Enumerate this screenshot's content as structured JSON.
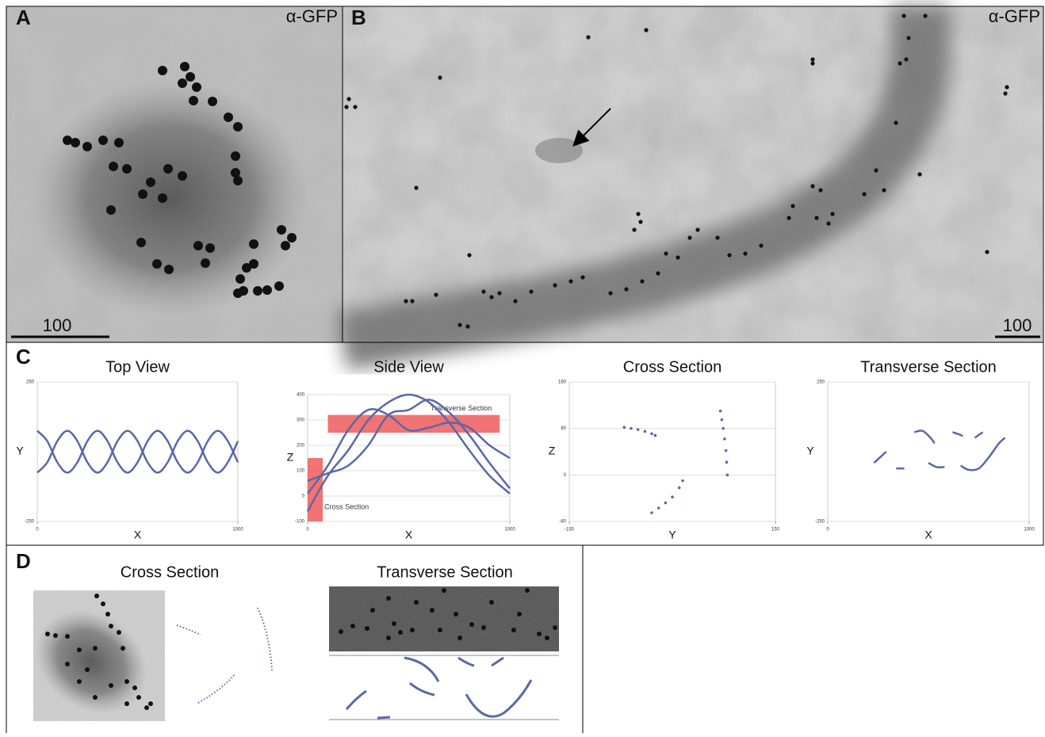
{
  "figure": {
    "panel_a": {
      "label": "A",
      "stain": "α-GFP",
      "scale_bar": "100"
    },
    "panel_b": {
      "label": "B",
      "stain": "α-GFP",
      "scale_bar": "100"
    },
    "panel_c": {
      "label": "C"
    },
    "panel_d": {
      "label": "D",
      "titles": [
        "Cross Section",
        "Transverse Section"
      ]
    }
  },
  "chart_data": [
    {
      "type": "line",
      "title": "Top View",
      "x_label": "X",
      "y_label": "Y",
      "xlim": [
        0,
        1000
      ],
      "ylim": [
        -250,
        250
      ],
      "xticks": [
        0,
        1000
      ],
      "yticks": [
        -250,
        250
      ],
      "series": [
        {
          "color": "#5a68a6",
          "x": [
            0,
            50,
            100,
            150,
            200,
            250,
            300,
            350,
            400,
            450,
            500,
            550,
            600,
            650,
            700,
            750,
            800,
            850,
            900,
            950,
            1000
          ],
          "values": [
            75,
            38,
            -38,
            -75,
            -38,
            38,
            75,
            38,
            -38,
            -75,
            -38,
            38,
            75,
            38,
            -38,
            -75,
            -38,
            38,
            75,
            38,
            -38
          ]
        },
        {
          "color": "#5a68a6",
          "x": [
            0,
            50,
            100,
            150,
            200,
            250,
            300,
            350,
            400,
            450,
            500,
            550,
            600,
            650,
            700,
            750,
            800,
            850,
            900,
            950,
            1000
          ],
          "values": [
            -75,
            -38,
            38,
            75,
            38,
            -38,
            -75,
            -38,
            38,
            75,
            38,
            -38,
            -75,
            -38,
            38,
            75,
            38,
            -38,
            -75,
            -38,
            38
          ]
        }
      ]
    },
    {
      "type": "line",
      "title": "Side View",
      "x_label": "X",
      "y_label": "Z",
      "xlim": [
        0,
        1000
      ],
      "ylim": [
        -100,
        400
      ],
      "xticks": [
        0,
        1000
      ],
      "yticks": [
        -100,
        0,
        100,
        200,
        300,
        400
      ],
      "regions": [
        {
          "label": "Transverse Section",
          "color": "#f05a5a",
          "x": [
            100,
            950
          ],
          "y": [
            250,
            320
          ]
        },
        {
          "label": "Cross Section",
          "color": "#f05a5a",
          "x": [
            0,
            75
          ],
          "y": [
            -100,
            150
          ]
        }
      ],
      "series": [
        {
          "color": "#5a68a6",
          "x": [
            0,
            100,
            200,
            300,
            400,
            500,
            600,
            700,
            800,
            900,
            1000
          ],
          "values": [
            -60,
            80,
            180,
            300,
            370,
            400,
            370,
            290,
            180,
            80,
            10
          ]
        },
        {
          "color": "#5a68a6",
          "x": [
            0,
            100,
            200,
            300,
            400,
            500,
            600,
            700,
            800,
            900,
            1000
          ],
          "values": [
            60,
            90,
            120,
            200,
            320,
            340,
            380,
            330,
            240,
            130,
            30
          ]
        },
        {
          "color": "#5a68a6",
          "x": [
            0,
            100,
            200,
            300,
            400,
            500,
            600,
            700,
            800,
            900,
            1000
          ],
          "values": [
            10,
            120,
            260,
            340,
            320,
            260,
            270,
            290,
            270,
            200,
            150
          ]
        }
      ]
    },
    {
      "type": "scatter",
      "title": "Cross Section",
      "x_label": "Y",
      "y_label": "Z",
      "xlim": [
        -150,
        150
      ],
      "ylim": [
        -80,
        160
      ],
      "xticks": [
        -150,
        150
      ],
      "yticks": [
        -80,
        0,
        80,
        160
      ],
      "series": [
        {
          "color": "#5a68a6",
          "x": [
            -70,
            -60,
            -50,
            -40,
            -30,
            -25
          ],
          "values": [
            82,
            80,
            78,
            75,
            71,
            68
          ]
        },
        {
          "color": "#5a68a6",
          "x": [
            70,
            72,
            74,
            76,
            78,
            79,
            80
          ],
          "values": [
            110,
            95,
            80,
            62,
            42,
            22,
            0
          ]
        },
        {
          "color": "#5a68a6",
          "x": [
            -30,
            -20,
            -10,
            0,
            10,
            15
          ],
          "values": [
            -65,
            -57,
            -48,
            -38,
            -22,
            -10
          ]
        }
      ]
    },
    {
      "type": "line",
      "title": "Transverse Section",
      "x_label": "X",
      "y_label": "Y",
      "xlim": [
        0,
        1000
      ],
      "ylim": [
        -250,
        250
      ],
      "xticks": [
        0,
        1000
      ],
      "yticks": [
        -250,
        250
      ],
      "series": [
        {
          "color": "#5a68a6",
          "x": [
            230,
            260,
            290,
            300,
            340,
            380,
            400,
            430,
            470,
            510,
            530,
            540,
            500,
            540,
            580,
            600,
            620,
            660,
            670,
            680,
            660,
            700,
            750,
            800,
            850,
            880,
            890,
            730,
            770
          ],
          "values": [
            -40,
            -20,
            0,
            null,
            -60,
            -60,
            null,
            70,
            75,
            50,
            30,
            null,
            -40,
            -55,
            -55,
            null,
            70,
            60,
            55,
            null,
            -50,
            -65,
            -60,
            -20,
            30,
            50,
            null,
            50,
            70
          ]
        }
      ]
    }
  ]
}
